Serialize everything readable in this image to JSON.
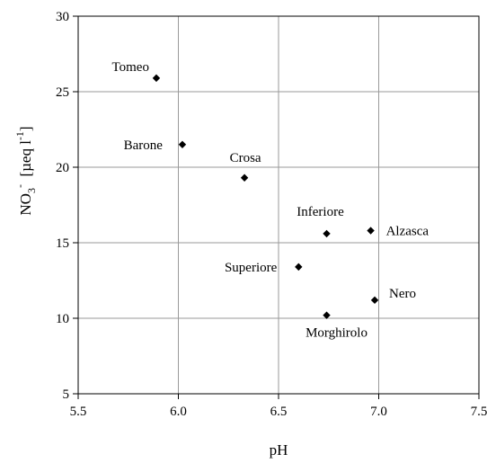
{
  "chart_data": {
    "type": "scatter",
    "title": "",
    "xlabel": "pH",
    "ylabel": {
      "base": "NO",
      "sub": "3",
      "sup": "-",
      "mid": "  [µeq l",
      "sup2": "-1",
      "end": "]"
    },
    "xlim": [
      5.5,
      7.5
    ],
    "ylim": [
      5,
      30
    ],
    "xticks": [
      5.5,
      6.0,
      6.5,
      7.0,
      7.5
    ],
    "xtick_labels": [
      "5.5",
      "6.0",
      "6.5",
      "7.0",
      "7.5"
    ],
    "yticks": [
      5,
      10,
      15,
      20,
      25,
      30
    ],
    "ytick_labels": [
      "5",
      "10",
      "15",
      "20",
      "25",
      "30"
    ],
    "grid": true,
    "marker": "diamond",
    "marker_color": "#000000",
    "points": [
      {
        "label": "Tomeo",
        "x": 5.89,
        "y": 25.9
      },
      {
        "label": "Barone",
        "x": 6.02,
        "y": 21.5
      },
      {
        "label": "Crosa",
        "x": 6.33,
        "y": 19.3
      },
      {
        "label": "Inferiore",
        "x": 6.74,
        "y": 15.6
      },
      {
        "label": "Alzasca",
        "x": 6.96,
        "y": 15.8
      },
      {
        "label": "Superiore",
        "x": 6.6,
        "y": 13.4
      },
      {
        "label": "Nero",
        "x": 6.98,
        "y": 11.2
      },
      {
        "label": "Morghirolo",
        "x": 6.74,
        "y": 10.2
      }
    ]
  }
}
